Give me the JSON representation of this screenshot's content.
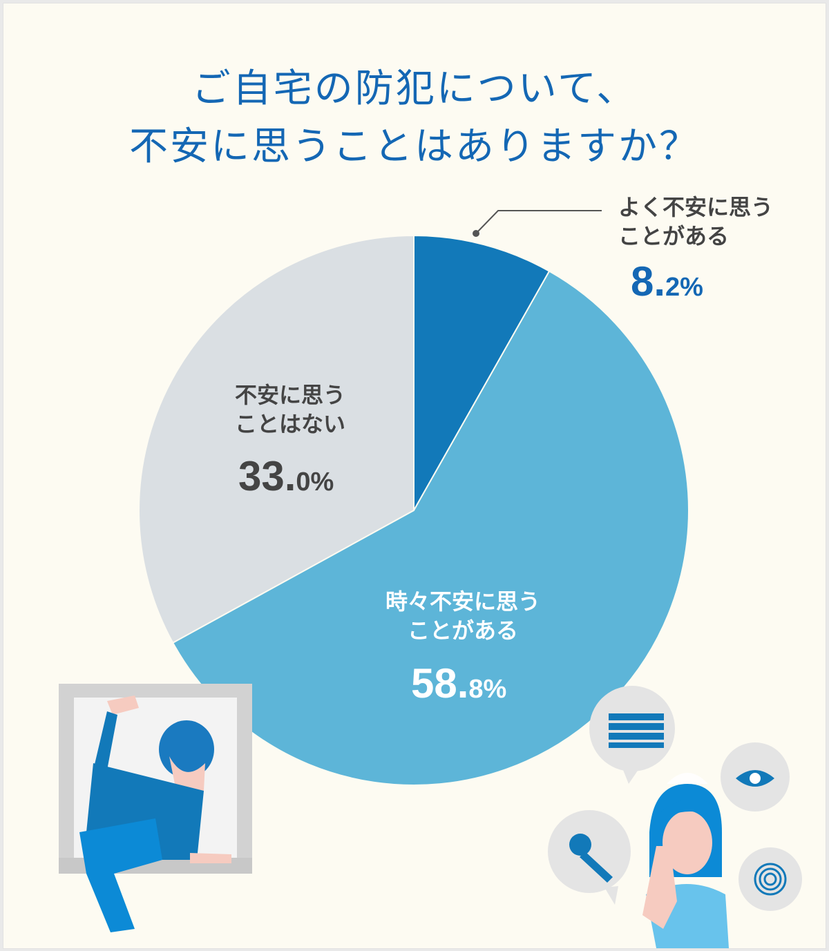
{
  "title_lines": [
    "ご自宅の防犯について、",
    "不安に思うことはありますか？"
  ],
  "chart_data": {
    "type": "pie",
    "title": "ご自宅の防犯について、不安に思うことはありますか？",
    "start_angle": "12 o'clock, clockwise",
    "slices": [
      {
        "label": "よく不安に思うことがある",
        "label_lines": [
          "よく不安に思う",
          "ことがある"
        ],
        "value": 8.2,
        "pct_int": "8.",
        "pct_dec": "2%",
        "color": "#1279b9"
      },
      {
        "label": "時々不安に思うことがある",
        "label_lines": [
          "時々不安に思う",
          "ことがある"
        ],
        "value": 58.8,
        "pct_int": "58.",
        "pct_dec": "8%",
        "color": "#5db5d8"
      },
      {
        "label": "不安に思うことはない",
        "label_lines": [
          "不安に思う",
          "ことはない"
        ],
        "value": 33.0,
        "pct_int": "33.",
        "pct_dec": "0%",
        "color": "#dadfe3"
      }
    ]
  },
  "colors": {
    "title": "#1467b4",
    "background": "#fdfbf2",
    "label_dark": "#444444",
    "label_light": "#ffffff"
  },
  "illustrations": [
    "burglar-climbing-window",
    "worried-woman",
    "brick-wall-bubble",
    "eye-bubble",
    "key-bubble",
    "fingerprint-bubble"
  ]
}
